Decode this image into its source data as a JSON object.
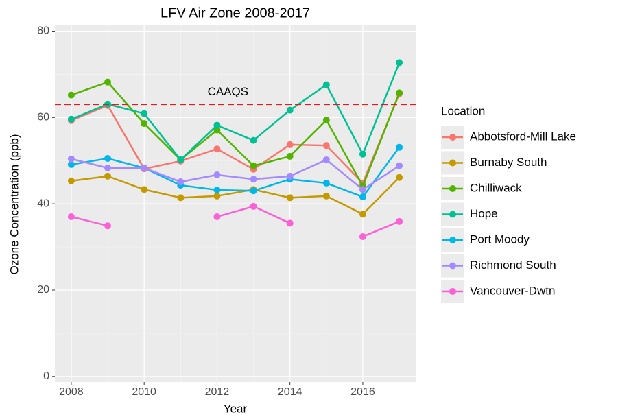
{
  "chart_data": {
    "type": "line",
    "title": "LFV Air Zone 2008-2017",
    "x_label": "Year",
    "y_label": "Ozone Concentration (ppb)",
    "x": [
      2008,
      2009,
      2010,
      2011,
      2012,
      2013,
      2014,
      2015,
      2016,
      2017
    ],
    "xlim": [
      2007.55,
      2017.45
    ],
    "xticks": [
      2008,
      2010,
      2012,
      2014,
      2016
    ],
    "ylim": [
      -1.3,
      81.5
    ],
    "yticks": [
      0,
      20,
      40,
      60,
      80
    ],
    "grid": true,
    "legend_title": "Location",
    "legend_position": "right",
    "reference_line": {
      "value": 63,
      "label": "CAAQS",
      "color": "#e41a1c",
      "label_x": 2012.3
    },
    "series": [
      {
        "name": "Abbotsford-Mill Lake",
        "color": "#F8766D",
        "values": [
          59.3,
          62.8,
          48.1,
          49.9,
          52.7,
          48.0,
          53.7,
          53.5,
          44.8,
          65.5
        ]
      },
      {
        "name": "Burnaby South",
        "color": "#C49A00",
        "values": [
          45.3,
          46.4,
          43.3,
          41.4,
          41.8,
          43.3,
          41.4,
          41.8,
          37.6,
          46.1
        ]
      },
      {
        "name": "Chilliwack",
        "color": "#53B400",
        "values": [
          65.2,
          68.2,
          58.6,
          50.2,
          57.1,
          48.8,
          51.0,
          59.4,
          44.1,
          65.7
        ]
      },
      {
        "name": "Hope",
        "color": "#00C094",
        "values": [
          59.6,
          63.1,
          60.9,
          50.2,
          58.2,
          54.7,
          61.7,
          67.6,
          51.5,
          72.7
        ]
      },
      {
        "name": "Port Moody",
        "color": "#00B6EB",
        "values": [
          49.1,
          50.5,
          48.3,
          44.3,
          43.2,
          43.0,
          45.7,
          44.8,
          41.6,
          53.1
        ]
      },
      {
        "name": "Richmond South",
        "color": "#A58AFF",
        "values": [
          50.4,
          48.3,
          48.3,
          45.1,
          46.7,
          45.7,
          46.4,
          50.2,
          43.3,
          48.8
        ]
      },
      {
        "name": "Vancouver-Dwtn",
        "color": "#FB61D7",
        "values": [
          37.0,
          34.9,
          null,
          null,
          37.0,
          39.4,
          35.5,
          null,
          32.4,
          35.9
        ]
      }
    ]
  }
}
